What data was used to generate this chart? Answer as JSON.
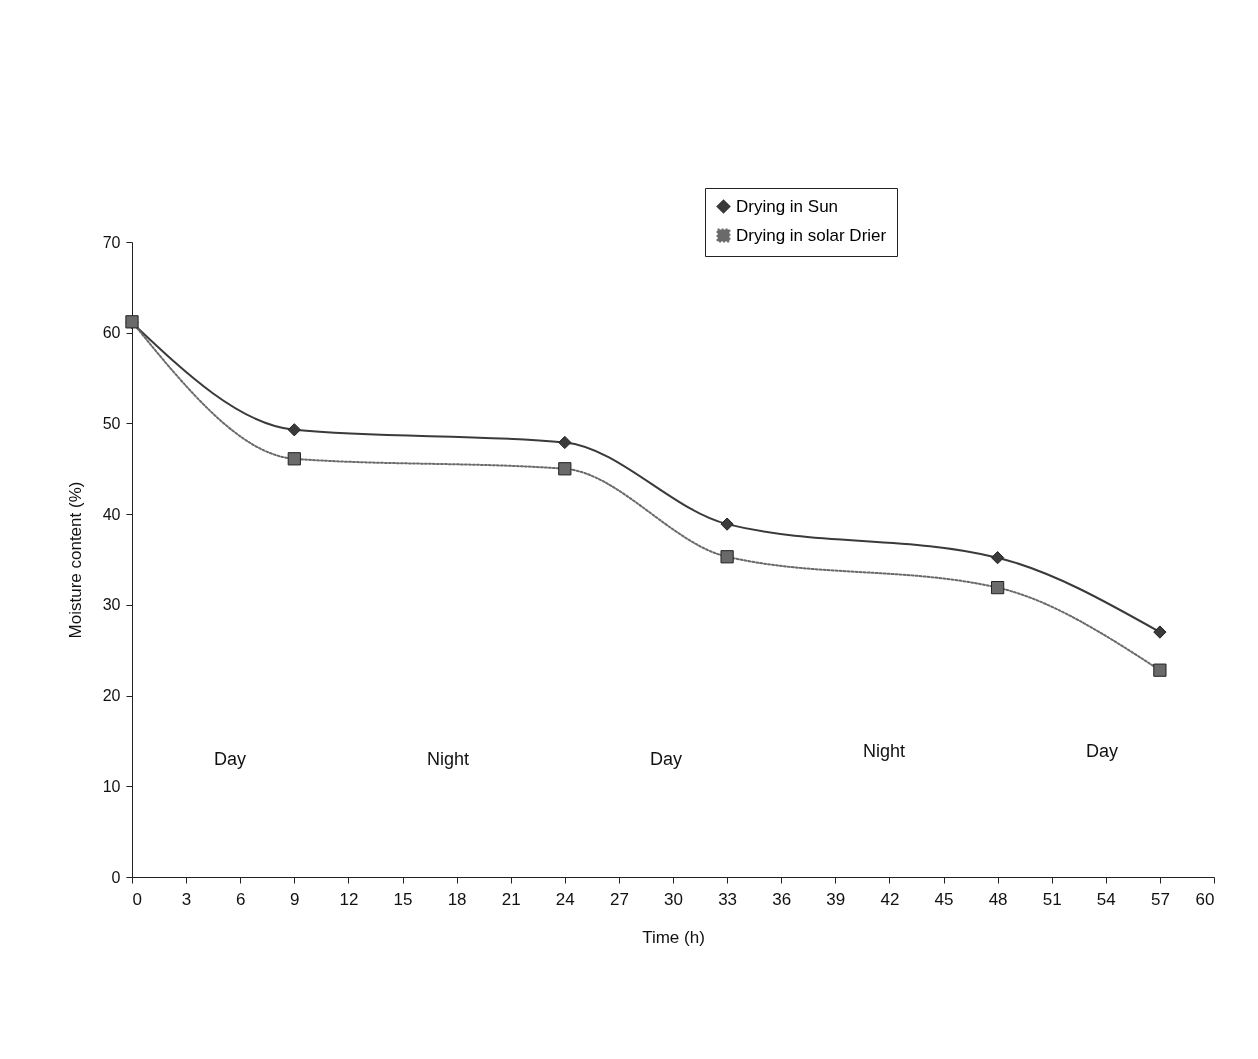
{
  "chart_data": {
    "type": "line",
    "xlabel": "Time (h)",
    "ylabel": "Moisture content (%)",
    "xlim": [
      0,
      60
    ],
    "xticks": [
      0,
      3,
      6,
      9,
      12,
      15,
      18,
      21,
      24,
      27,
      30,
      33,
      36,
      39,
      42,
      45,
      48,
      51,
      54,
      57,
      60
    ],
    "ylim": [
      0,
      70
    ],
    "yticks": [
      0,
      10,
      20,
      30,
      40,
      50,
      60,
      70
    ],
    "grid": false,
    "legend": "top right",
    "series": [
      {
        "name": "Drying in Sun",
        "color": "#3a3a3a",
        "marker": "diamond",
        "line_style": "solid",
        "x": [
          0,
          9,
          24,
          33,
          48,
          57
        ],
        "values": [
          61.1,
          49.3,
          47.9,
          38.9,
          35.2,
          27.0
        ]
      },
      {
        "name": "Drying in solar Drier",
        "color": "#6a6a6a",
        "marker": "square",
        "line_style": "dotted",
        "x": [
          0,
          9,
          24,
          33,
          48,
          57
        ],
        "values": [
          61.2,
          46.1,
          45.0,
          35.3,
          31.9,
          22.8
        ]
      }
    ],
    "annotations": [
      "Day",
      "Night",
      "Day",
      "Night",
      "Day"
    ]
  }
}
